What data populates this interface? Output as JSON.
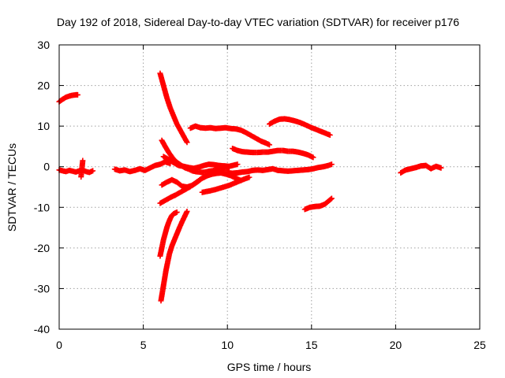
{
  "chart_data": {
    "type": "scatter",
    "title": "Day 192 of 2018, Sidereal Day-to-day VTEC variation (SDTVAR) for receiver p176",
    "xlabel": "GPS time / hours",
    "ylabel": "SDTVAR / TECUs",
    "xlim": [
      0,
      25
    ],
    "ylim": [
      -40,
      30
    ],
    "xticks": [
      0,
      5,
      10,
      15,
      20,
      25
    ],
    "yticks": [
      -40,
      -30,
      -20,
      -10,
      0,
      10,
      20,
      30
    ],
    "grid": true,
    "marker": "plus",
    "color": "#ff0000",
    "series": [
      {
        "x": [
          0.0,
          0.2,
          0.4,
          0.6,
          0.8,
          1.0,
          1.1
        ],
        "y": [
          16.0,
          16.6,
          17.1,
          17.4,
          17.6,
          17.7,
          17.7
        ]
      },
      {
        "x": [
          0.0,
          0.2,
          0.4,
          0.6,
          0.8,
          1.0,
          1.2,
          1.4,
          1.6,
          1.8,
          2.0
        ],
        "y": [
          -0.8,
          -1.0,
          -1.2,
          -0.9,
          -1.1,
          -1.3,
          -1.0,
          -0.8,
          -1.2,
          -1.4,
          -1.0
        ]
      },
      {
        "x": [
          3.3,
          3.6,
          3.9,
          4.2,
          4.5,
          4.8,
          5.1,
          5.4,
          5.7,
          6.0,
          6.3,
          6.6
        ],
        "y": [
          -0.6,
          -1.0,
          -0.8,
          -1.2,
          -0.9,
          -0.5,
          -0.9,
          -0.3,
          0.3,
          0.6,
          1.2,
          0.8
        ]
      },
      {
        "x": [
          6.0,
          6.2,
          6.4,
          6.6,
          6.8,
          7.0,
          7.2,
          7.4,
          7.6
        ],
        "y": [
          23.0,
          20.0,
          17.0,
          14.5,
          12.5,
          10.5,
          9.0,
          7.5,
          6.0
        ]
      },
      {
        "x": [
          6.1,
          6.3,
          6.5,
          6.7,
          6.9,
          7.1,
          7.3,
          7.5,
          7.7,
          7.9,
          8.1,
          8.3,
          8.5,
          8.7,
          8.9,
          9.1,
          9.3,
          9.5,
          9.7,
          9.9,
          10.1
        ],
        "y": [
          6.5,
          5.0,
          3.6,
          2.4,
          1.4,
          0.8,
          0.2,
          -0.3,
          -0.6,
          -1.0,
          -1.2,
          -1.3,
          -1.4,
          -1.3,
          -1.1,
          -1.0,
          -0.8,
          -0.6,
          -0.4,
          -0.3,
          -0.2
        ]
      },
      {
        "x": [
          6.2,
          6.5,
          6.8,
          7.1,
          7.4,
          7.7,
          8.0,
          8.3,
          8.6,
          8.9,
          9.2,
          9.5,
          9.8,
          10.1,
          10.4,
          10.6
        ],
        "y": [
          2.5,
          1.8,
          1.0,
          0.3,
          0.1,
          -0.2,
          -0.4,
          -0.1,
          0.3,
          0.6,
          0.5,
          0.3,
          0.2,
          0.1,
          0.4,
          0.6
        ]
      },
      {
        "x": [
          7.8,
          8.1,
          8.4,
          8.7,
          9.0,
          9.3,
          9.6,
          9.9,
          10.2,
          10.5,
          10.8,
          11.1,
          11.4,
          11.7,
          12.0,
          12.3,
          12.5
        ],
        "y": [
          9.5,
          10.0,
          9.6,
          9.5,
          9.6,
          9.4,
          9.5,
          9.6,
          9.4,
          9.3,
          9.0,
          8.4,
          7.7,
          7.0,
          6.3,
          5.8,
          5.4
        ]
      },
      {
        "x": [
          10.3,
          10.6,
          10.9,
          11.2,
          11.5,
          11.8,
          12.1,
          12.4,
          12.7,
          13.0,
          13.3,
          13.6,
          13.9,
          14.2,
          14.5,
          14.8,
          15.1
        ],
        "y": [
          4.5,
          4.0,
          3.7,
          3.6,
          3.5,
          3.5,
          3.6,
          3.6,
          3.8,
          4.0,
          4.0,
          3.8,
          3.8,
          3.6,
          3.3,
          2.9,
          2.3
        ]
      },
      {
        "x": [
          12.5,
          12.8,
          13.1,
          13.4,
          13.7,
          14.0,
          14.3,
          14.6,
          14.9,
          15.2,
          15.5,
          15.8,
          16.1
        ],
        "y": [
          10.5,
          11.2,
          11.7,
          11.8,
          11.6,
          11.3,
          10.9,
          10.4,
          9.8,
          9.3,
          8.8,
          8.3,
          7.8
        ]
      },
      {
        "x": [
          6.1,
          6.4,
          6.7,
          7.0,
          7.3,
          7.6,
          7.9,
          8.2,
          8.5,
          8.8,
          9.1,
          9.4,
          9.7,
          10.0,
          10.3,
          10.6,
          10.9,
          11.2,
          11.5,
          11.8,
          12.1,
          12.4,
          12.7,
          13.0,
          13.3,
          13.6,
          13.9,
          14.2,
          14.5,
          14.8,
          15.1,
          15.4,
          15.7,
          16.0,
          16.2
        ],
        "y": [
          -4.5,
          -3.8,
          -3.2,
          -3.8,
          -4.8,
          -5.0,
          -4.6,
          -3.8,
          -2.8,
          -2.2,
          -1.8,
          -1.6,
          -1.5,
          -1.5,
          -1.6,
          -1.5,
          -1.3,
          -1.2,
          -0.9,
          -0.8,
          -0.9,
          -0.7,
          -0.5,
          -0.9,
          -1.0,
          -1.1,
          -1.0,
          -0.9,
          -0.8,
          -0.7,
          -0.5,
          -0.2,
          0.0,
          0.3,
          0.6
        ]
      },
      {
        "x": [
          6.0,
          6.3,
          6.6,
          6.9,
          7.2,
          7.5,
          7.8,
          8.1,
          8.4,
          8.7,
          9.0,
          9.3,
          9.6,
          9.9,
          10.2,
          10.5,
          10.8
        ],
        "y": [
          -9.0,
          -8.3,
          -7.6,
          -7.0,
          -6.3,
          -5.6,
          -4.9,
          -4.0,
          -3.1,
          -2.4,
          -1.9,
          -1.6,
          -1.5,
          -1.8,
          -2.2,
          -2.8,
          -3.4
        ]
      },
      {
        "x": [
          8.5,
          8.9,
          9.3,
          9.7,
          10.1,
          10.5,
          10.9,
          11.3
        ],
        "y": [
          -6.3,
          -6.0,
          -5.6,
          -5.1,
          -4.6,
          -3.9,
          -3.2,
          -2.6
        ]
      },
      {
        "x": [
          14.6,
          14.9,
          15.2,
          15.5,
          15.8,
          16.0,
          16.2
        ],
        "y": [
          -10.5,
          -10.0,
          -9.8,
          -9.7,
          -9.2,
          -8.5,
          -7.8
        ]
      },
      {
        "x": [
          6.0,
          6.1,
          6.2,
          6.3,
          6.4,
          6.5,
          6.6,
          6.7,
          6.8,
          6.9,
          7.0
        ],
        "y": [
          -22.0,
          -20.0,
          -18.0,
          -16.5,
          -15.0,
          -13.8,
          -12.8,
          -12.0,
          -11.6,
          -11.4,
          -11.2
        ]
      },
      {
        "x": [
          6.05,
          6.15,
          6.25,
          6.35,
          6.45,
          6.55,
          6.7,
          6.85,
          7.0,
          7.15,
          7.3,
          7.45,
          7.6
        ],
        "y": [
          -33.0,
          -30.5,
          -28.0,
          -25.5,
          -23.5,
          -21.5,
          -19.5,
          -18.0,
          -16.5,
          -15.0,
          -13.6,
          -12.3,
          -11.0
        ]
      },
      {
        "x": [
          20.3,
          20.6,
          20.9,
          21.2,
          21.5,
          21.8,
          22.1,
          22.4,
          22.7
        ],
        "y": [
          -1.5,
          -0.8,
          -0.5,
          -0.2,
          0.2,
          0.3,
          -0.5,
          0.1,
          -0.3
        ]
      },
      {
        "x": [
          1.4,
          1.3
        ],
        "y": [
          1.5,
          -2.5
        ]
      }
    ]
  }
}
